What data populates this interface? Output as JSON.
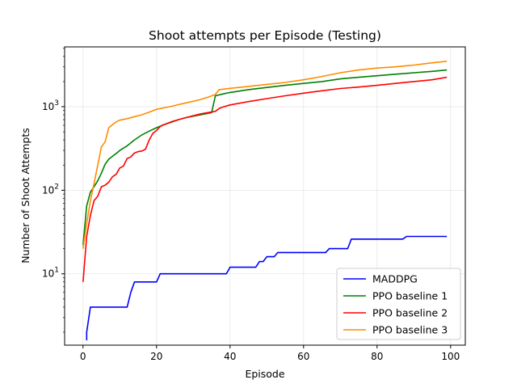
{
  "chart_data": {
    "type": "line",
    "title": "Shoot attempts per Episode (Testing)",
    "xlabel": "Episode",
    "ylabel": "Number of Shoot Attempts",
    "xlim": [
      -5,
      104
    ],
    "ylim": [
      1.4,
      5200
    ],
    "yscale": "log",
    "grid": true,
    "legend": "lower-right",
    "x_ticks": [
      0,
      20,
      40,
      60,
      80,
      100
    ],
    "x_tick_labels": [
      "0",
      "20",
      "40",
      "60",
      "80",
      "100"
    ],
    "y_ticks": [
      10,
      100,
      1000
    ],
    "y_tick_labels": [
      "10¹",
      "10²",
      "10³"
    ],
    "series": [
      {
        "name": "MADDPG",
        "color": "#0000ff",
        "x": [
          1,
          1,
          2,
          12,
          13,
          14,
          20,
          21,
          39,
          40,
          47,
          48,
          49,
          50,
          52,
          53,
          66,
          67,
          72,
          73,
          87,
          88,
          99
        ],
        "values": [
          1.6,
          2,
          4,
          4,
          6,
          8,
          8,
          10,
          10,
          12,
          12,
          14,
          14,
          16,
          16,
          18,
          18,
          20,
          20,
          26,
          26,
          28,
          28
        ]
      },
      {
        "name": "PPO baseline 1",
        "color": "#008000",
        "x": [
          0,
          1,
          2,
          3,
          4,
          5,
          6,
          7,
          8,
          9,
          10,
          12,
          14,
          16,
          18,
          20,
          22,
          24,
          26,
          28,
          30,
          32,
          35,
          36,
          38,
          40,
          45,
          50,
          55,
          60,
          65,
          70,
          75,
          80,
          85,
          90,
          95,
          99
        ],
        "values": [
          22,
          65,
          95,
          110,
          130,
          160,
          205,
          235,
          255,
          275,
          300,
          340,
          400,
          460,
          510,
          560,
          610,
          650,
          700,
          740,
          770,
          800,
          850,
          1350,
          1420,
          1480,
          1600,
          1700,
          1800,
          1900,
          2000,
          2150,
          2250,
          2350,
          2450,
          2550,
          2650,
          2750
        ]
      },
      {
        "name": "PPO baseline 2",
        "color": "#ff0000",
        "x": [
          0,
          1,
          2,
          3,
          4,
          5,
          6,
          7,
          8,
          9,
          10,
          11,
          12,
          13,
          14,
          15,
          16,
          17,
          18,
          19,
          20,
          21,
          22,
          24,
          26,
          28,
          30,
          32,
          34,
          36,
          37,
          38,
          40,
          45,
          50,
          55,
          60,
          65,
          70,
          75,
          80,
          85,
          90,
          95,
          99
        ],
        "values": [
          8,
          28,
          50,
          75,
          85,
          110,
          115,
          125,
          145,
          155,
          185,
          195,
          240,
          250,
          280,
          290,
          295,
          310,
          400,
          480,
          520,
          580,
          610,
          660,
          700,
          740,
          780,
          820,
          850,
          880,
          950,
          990,
          1050,
          1150,
          1250,
          1350,
          1450,
          1550,
          1650,
          1720,
          1800,
          1900,
          2000,
          2100,
          2250
        ]
      },
      {
        "name": "PPO baseline 3",
        "color": "#ff8c00",
        "x": [
          0,
          1,
          2,
          3,
          4,
          5,
          6,
          7,
          8,
          9,
          10,
          12,
          14,
          16,
          18,
          20,
          22,
          24,
          26,
          28,
          30,
          32,
          34,
          36,
          37,
          40,
          45,
          50,
          55,
          60,
          65,
          70,
          75,
          80,
          85,
          90,
          95,
          99
        ],
        "values": [
          20,
          40,
          75,
          120,
          200,
          330,
          380,
          560,
          610,
          660,
          690,
          720,
          760,
          800,
          860,
          930,
          970,
          1010,
          1060,
          1110,
          1160,
          1220,
          1300,
          1400,
          1600,
          1660,
          1750,
          1850,
          1950,
          2100,
          2300,
          2550,
          2750,
          2900,
          3000,
          3150,
          3350,
          3500
        ]
      }
    ]
  }
}
